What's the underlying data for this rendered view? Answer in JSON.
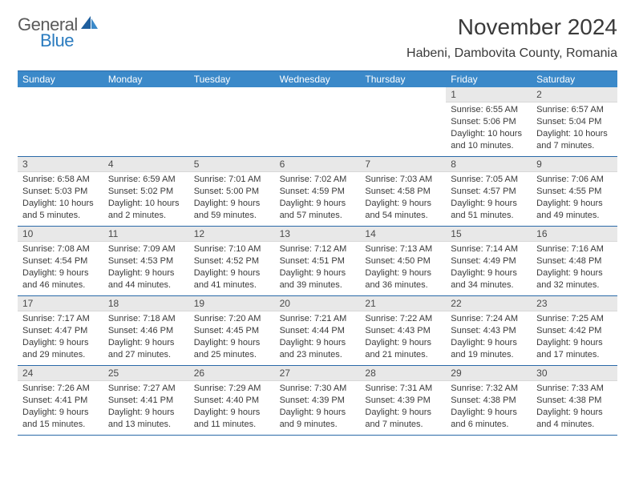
{
  "brand": {
    "general": "General",
    "blue": "Blue"
  },
  "title": "November 2024",
  "location": "Habeni, Dambovita County, Romania",
  "colors": {
    "header_bg": "#3b89c9",
    "border": "#2a6aa8",
    "daynum_bg": "#e8e8e8",
    "text": "#3a3a3a",
    "brand_gray": "#5a5a5a",
    "brand_blue": "#2a7bbf"
  },
  "dow": [
    "Sunday",
    "Monday",
    "Tuesday",
    "Wednesday",
    "Thursday",
    "Friday",
    "Saturday"
  ],
  "weeks": [
    [
      {
        "n": "",
        "sr": "",
        "ss": "",
        "dl": ""
      },
      {
        "n": "",
        "sr": "",
        "ss": "",
        "dl": ""
      },
      {
        "n": "",
        "sr": "",
        "ss": "",
        "dl": ""
      },
      {
        "n": "",
        "sr": "",
        "ss": "",
        "dl": ""
      },
      {
        "n": "",
        "sr": "",
        "ss": "",
        "dl": ""
      },
      {
        "n": "1",
        "sr": "Sunrise: 6:55 AM",
        "ss": "Sunset: 5:06 PM",
        "dl": "Daylight: 10 hours and 10 minutes."
      },
      {
        "n": "2",
        "sr": "Sunrise: 6:57 AM",
        "ss": "Sunset: 5:04 PM",
        "dl": "Daylight: 10 hours and 7 minutes."
      }
    ],
    [
      {
        "n": "3",
        "sr": "Sunrise: 6:58 AM",
        "ss": "Sunset: 5:03 PM",
        "dl": "Daylight: 10 hours and 5 minutes."
      },
      {
        "n": "4",
        "sr": "Sunrise: 6:59 AM",
        "ss": "Sunset: 5:02 PM",
        "dl": "Daylight: 10 hours and 2 minutes."
      },
      {
        "n": "5",
        "sr": "Sunrise: 7:01 AM",
        "ss": "Sunset: 5:00 PM",
        "dl": "Daylight: 9 hours and 59 minutes."
      },
      {
        "n": "6",
        "sr": "Sunrise: 7:02 AM",
        "ss": "Sunset: 4:59 PM",
        "dl": "Daylight: 9 hours and 57 minutes."
      },
      {
        "n": "7",
        "sr": "Sunrise: 7:03 AM",
        "ss": "Sunset: 4:58 PM",
        "dl": "Daylight: 9 hours and 54 minutes."
      },
      {
        "n": "8",
        "sr": "Sunrise: 7:05 AM",
        "ss": "Sunset: 4:57 PM",
        "dl": "Daylight: 9 hours and 51 minutes."
      },
      {
        "n": "9",
        "sr": "Sunrise: 7:06 AM",
        "ss": "Sunset: 4:55 PM",
        "dl": "Daylight: 9 hours and 49 minutes."
      }
    ],
    [
      {
        "n": "10",
        "sr": "Sunrise: 7:08 AM",
        "ss": "Sunset: 4:54 PM",
        "dl": "Daylight: 9 hours and 46 minutes."
      },
      {
        "n": "11",
        "sr": "Sunrise: 7:09 AM",
        "ss": "Sunset: 4:53 PM",
        "dl": "Daylight: 9 hours and 44 minutes."
      },
      {
        "n": "12",
        "sr": "Sunrise: 7:10 AM",
        "ss": "Sunset: 4:52 PM",
        "dl": "Daylight: 9 hours and 41 minutes."
      },
      {
        "n": "13",
        "sr": "Sunrise: 7:12 AM",
        "ss": "Sunset: 4:51 PM",
        "dl": "Daylight: 9 hours and 39 minutes."
      },
      {
        "n": "14",
        "sr": "Sunrise: 7:13 AM",
        "ss": "Sunset: 4:50 PM",
        "dl": "Daylight: 9 hours and 36 minutes."
      },
      {
        "n": "15",
        "sr": "Sunrise: 7:14 AM",
        "ss": "Sunset: 4:49 PM",
        "dl": "Daylight: 9 hours and 34 minutes."
      },
      {
        "n": "16",
        "sr": "Sunrise: 7:16 AM",
        "ss": "Sunset: 4:48 PM",
        "dl": "Daylight: 9 hours and 32 minutes."
      }
    ],
    [
      {
        "n": "17",
        "sr": "Sunrise: 7:17 AM",
        "ss": "Sunset: 4:47 PM",
        "dl": "Daylight: 9 hours and 29 minutes."
      },
      {
        "n": "18",
        "sr": "Sunrise: 7:18 AM",
        "ss": "Sunset: 4:46 PM",
        "dl": "Daylight: 9 hours and 27 minutes."
      },
      {
        "n": "19",
        "sr": "Sunrise: 7:20 AM",
        "ss": "Sunset: 4:45 PM",
        "dl": "Daylight: 9 hours and 25 minutes."
      },
      {
        "n": "20",
        "sr": "Sunrise: 7:21 AM",
        "ss": "Sunset: 4:44 PM",
        "dl": "Daylight: 9 hours and 23 minutes."
      },
      {
        "n": "21",
        "sr": "Sunrise: 7:22 AM",
        "ss": "Sunset: 4:43 PM",
        "dl": "Daylight: 9 hours and 21 minutes."
      },
      {
        "n": "22",
        "sr": "Sunrise: 7:24 AM",
        "ss": "Sunset: 4:43 PM",
        "dl": "Daylight: 9 hours and 19 minutes."
      },
      {
        "n": "23",
        "sr": "Sunrise: 7:25 AM",
        "ss": "Sunset: 4:42 PM",
        "dl": "Daylight: 9 hours and 17 minutes."
      }
    ],
    [
      {
        "n": "24",
        "sr": "Sunrise: 7:26 AM",
        "ss": "Sunset: 4:41 PM",
        "dl": "Daylight: 9 hours and 15 minutes."
      },
      {
        "n": "25",
        "sr": "Sunrise: 7:27 AM",
        "ss": "Sunset: 4:41 PM",
        "dl": "Daylight: 9 hours and 13 minutes."
      },
      {
        "n": "26",
        "sr": "Sunrise: 7:29 AM",
        "ss": "Sunset: 4:40 PM",
        "dl": "Daylight: 9 hours and 11 minutes."
      },
      {
        "n": "27",
        "sr": "Sunrise: 7:30 AM",
        "ss": "Sunset: 4:39 PM",
        "dl": "Daylight: 9 hours and 9 minutes."
      },
      {
        "n": "28",
        "sr": "Sunrise: 7:31 AM",
        "ss": "Sunset: 4:39 PM",
        "dl": "Daylight: 9 hours and 7 minutes."
      },
      {
        "n": "29",
        "sr": "Sunrise: 7:32 AM",
        "ss": "Sunset: 4:38 PM",
        "dl": "Daylight: 9 hours and 6 minutes."
      },
      {
        "n": "30",
        "sr": "Sunrise: 7:33 AM",
        "ss": "Sunset: 4:38 PM",
        "dl": "Daylight: 9 hours and 4 minutes."
      }
    ]
  ]
}
